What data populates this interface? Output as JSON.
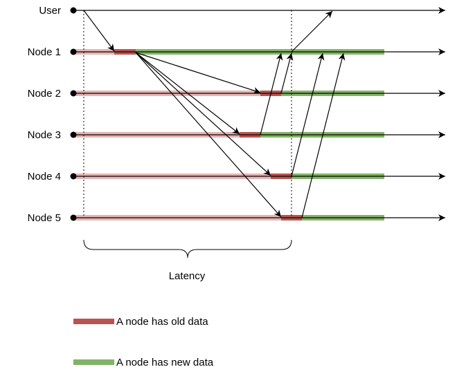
{
  "rows": [
    {
      "label": "User"
    },
    {
      "label": "Node 1"
    },
    {
      "label": "Node 2"
    },
    {
      "label": "Node 3"
    },
    {
      "label": "Node 4"
    },
    {
      "label": "Node 5"
    }
  ],
  "latency_label": "Latency",
  "legend": [
    {
      "label": "A node has old data",
      "color": "#b85450"
    },
    {
      "label": "A node has new data",
      "color": "#82b366"
    }
  ],
  "colors": {
    "old_faded": "#e6b4b2",
    "old": "#b85450",
    "new": "#82b366",
    "line": "#000000"
  }
}
